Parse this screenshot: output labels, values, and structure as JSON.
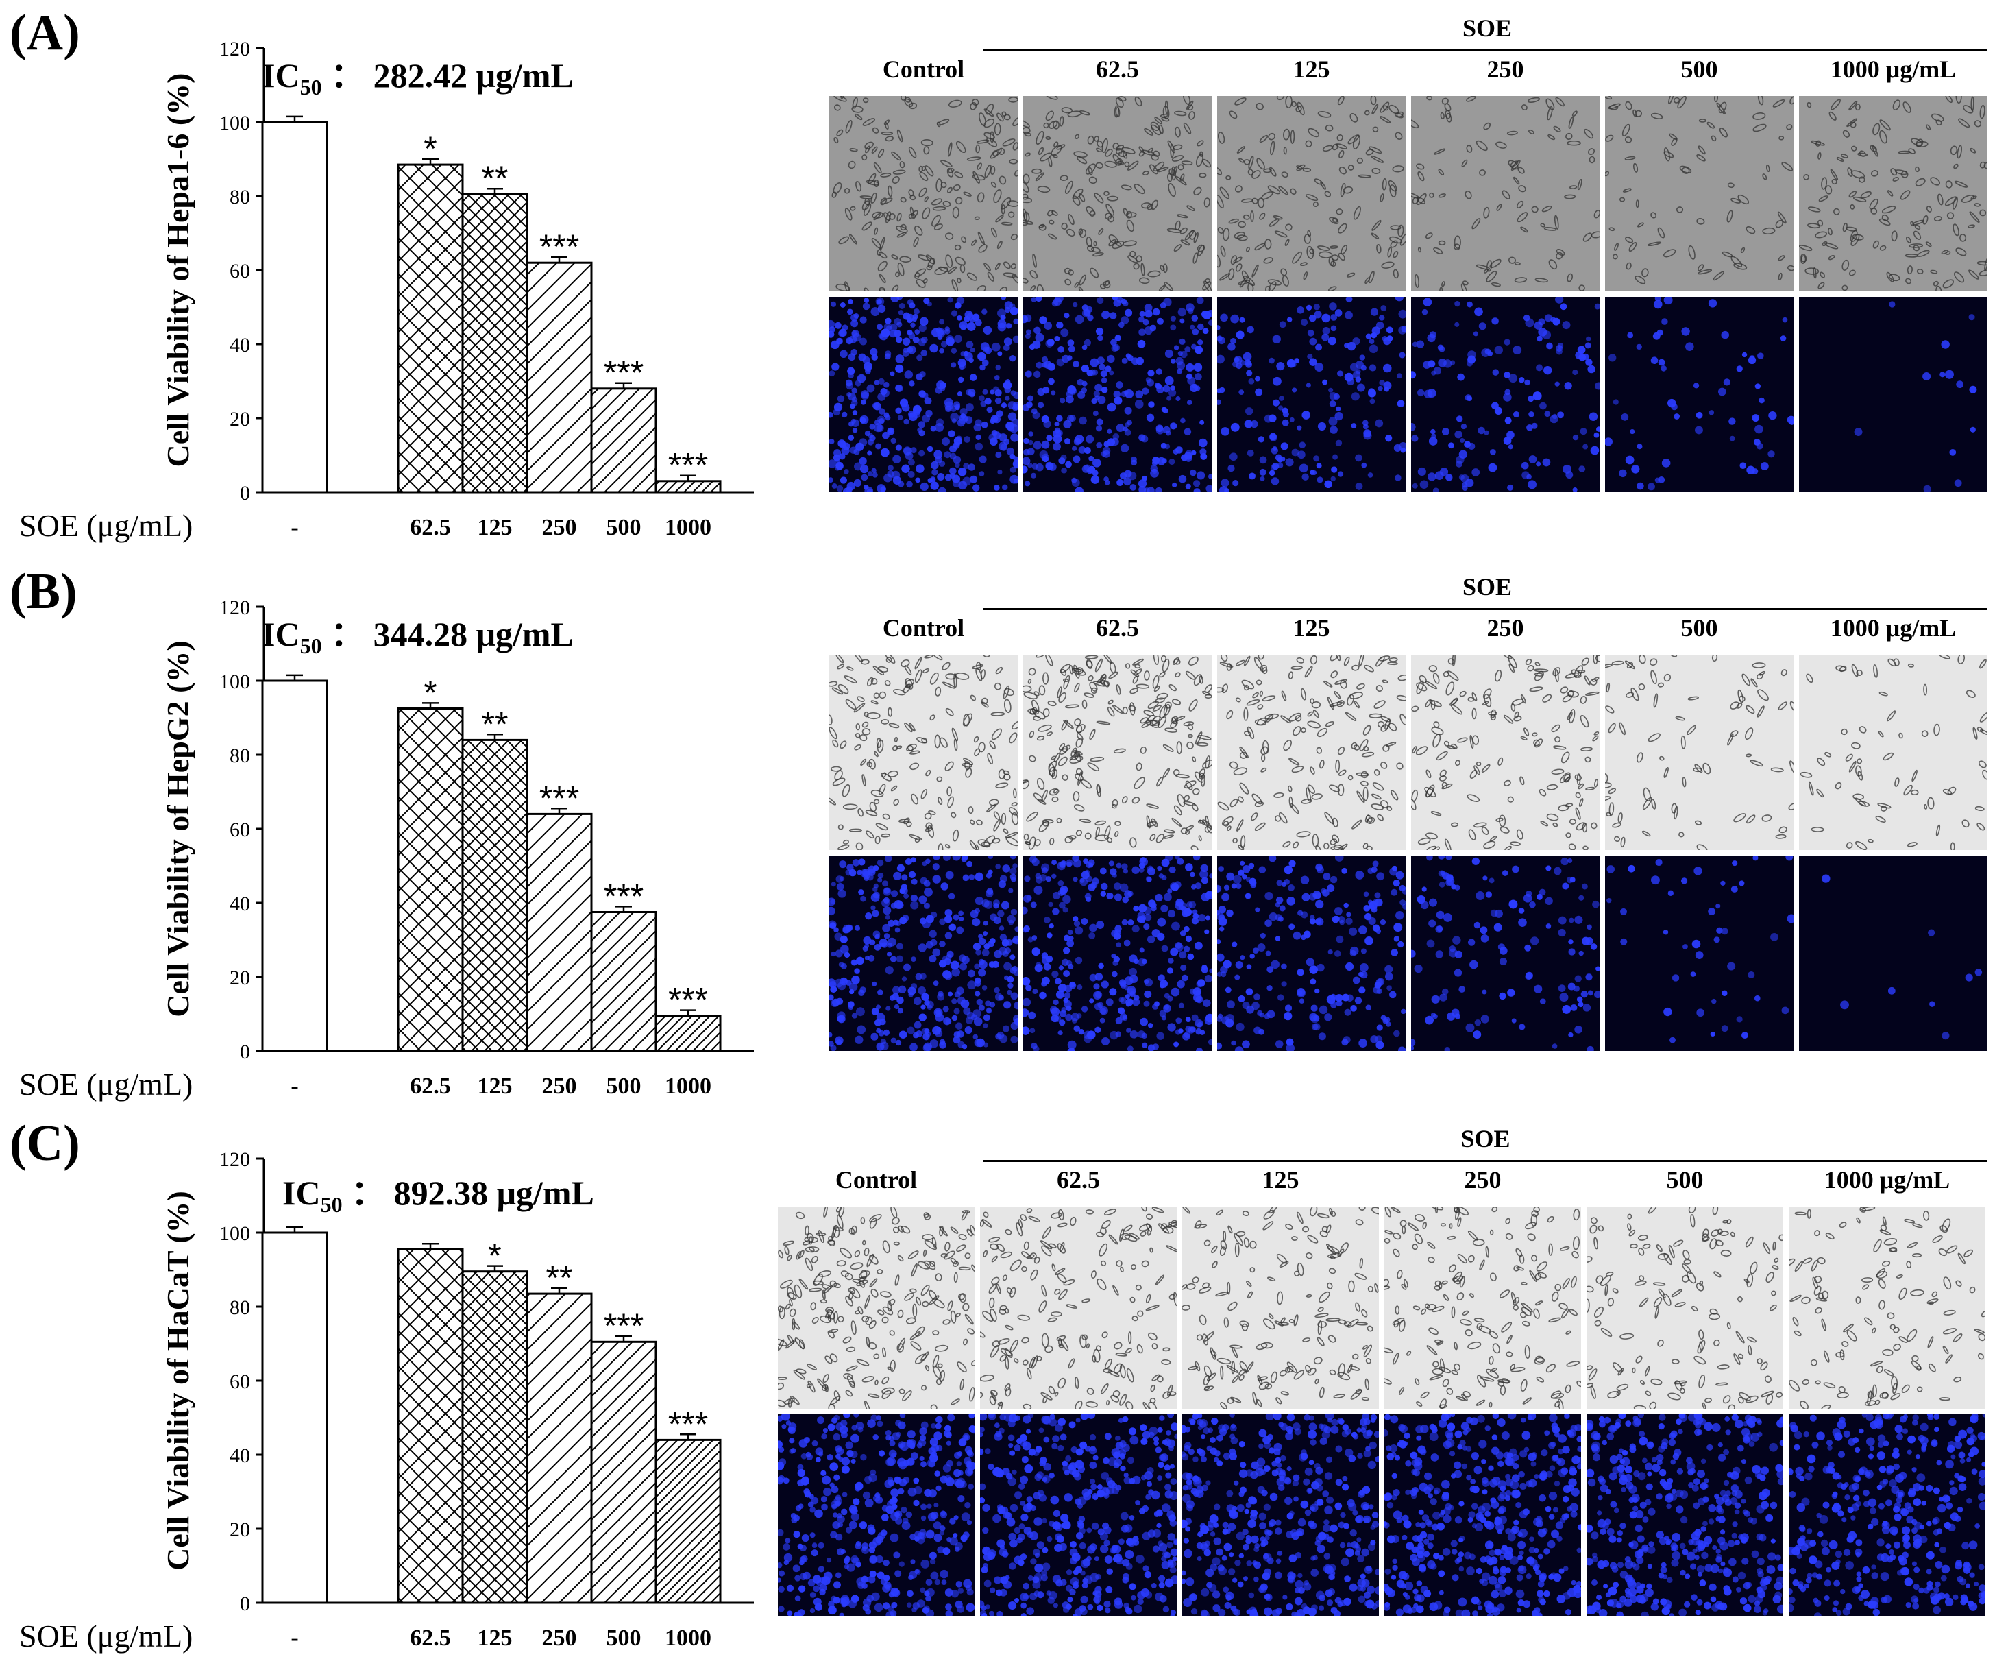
{
  "panels": [
    {
      "label": "(A)",
      "ic50": {
        "prefix": "IC",
        "sub": "50",
        "value": "： 282.42 μg/mL"
      },
      "chart_data": {
        "type": "bar",
        "ylabel": "Cell Viability of Hepa1-6 (%)",
        "xlabel": "SOE (μg/mL)",
        "categories": [
          "-",
          "62.5",
          "125",
          "250",
          "500",
          "1000"
        ],
        "values": [
          100,
          88.5,
          80.5,
          62,
          28,
          3
        ],
        "errors": [
          1.5,
          1.5,
          1.5,
          1.5,
          1.5,
          1.5
        ],
        "significance": [
          "",
          "*",
          "**",
          "***",
          "***",
          "***"
        ],
        "ylim": [
          0,
          120
        ],
        "yticks": [
          "0",
          "20",
          "40",
          "60",
          "80",
          "100",
          "120"
        ]
      },
      "micrographs": {
        "group_label": "SOE",
        "columns": [
          "Control",
          "62.5",
          "125",
          "250",
          "500",
          "1000 μg/mL"
        ],
        "brightfield_density": [
          0.75,
          0.75,
          0.6,
          0.35,
          0.3,
          0.55
        ],
        "fluorescence_density": [
          1.0,
          0.75,
          0.45,
          0.35,
          0.15,
          0.03
        ]
      }
    },
    {
      "label": "(B)",
      "ic50": {
        "prefix": "IC",
        "sub": "50",
        "value": "： 344.28 μg/mL"
      },
      "chart_data": {
        "type": "bar",
        "ylabel": "Cell Viability of HepG2 (%)",
        "xlabel": "SOE (μg/mL)",
        "categories": [
          "-",
          "62.5",
          "125",
          "250",
          "500",
          "1000"
        ],
        "values": [
          100,
          92.5,
          84,
          64,
          37.5,
          9.5
        ],
        "errors": [
          1.5,
          1.5,
          1.5,
          1.5,
          1.5,
          1.5
        ],
        "significance": [
          "",
          "*",
          "**",
          "***",
          "***",
          "***"
        ],
        "ylim": [
          0,
          120
        ],
        "yticks": [
          "0",
          "20",
          "40",
          "60",
          "80",
          "100",
          "120"
        ]
      },
      "micrographs": {
        "group_label": "SOE",
        "columns": [
          "Control",
          "62.5",
          "125",
          "250",
          "500",
          "1000 μg/mL"
        ],
        "brightfield_density": [
          0.7,
          0.9,
          0.65,
          0.6,
          0.3,
          0.25
        ],
        "fluorescence_density": [
          0.9,
          0.85,
          0.55,
          0.3,
          0.1,
          0.02
        ]
      }
    },
    {
      "label": "(C)",
      "ic50": {
        "prefix": "IC",
        "sub": "50",
        "value": "： 892.38 μg/mL"
      },
      "chart_data": {
        "type": "bar",
        "ylabel": "Cell Viability of HaCaT (%)",
        "xlabel": "SOE (μg/mL)",
        "categories": [
          "-",
          "62.5",
          "125",
          "250",
          "500",
          "1000"
        ],
        "values": [
          100,
          95.5,
          89.5,
          83.5,
          70.5,
          44
        ],
        "errors": [
          1.5,
          1.5,
          1.5,
          1.5,
          1.5,
          1.5
        ],
        "significance": [
          "",
          "",
          "*",
          "**",
          "***",
          "***"
        ],
        "ylim": [
          0,
          120
        ],
        "yticks": [
          "0",
          "20",
          "40",
          "60",
          "80",
          "100",
          "120"
        ]
      },
      "micrographs": {
        "group_label": "SOE",
        "columns": [
          "Control",
          "62.5",
          "125",
          "250",
          "500",
          "1000 μg/mL"
        ],
        "brightfield_density": [
          0.9,
          0.7,
          0.6,
          0.65,
          0.5,
          0.45
        ],
        "fluorescence_density": [
          1.0,
          1.0,
          1.0,
          1.0,
          0.95,
          0.85
        ]
      }
    }
  ],
  "colors": {
    "bar_fill": "#ffffff",
    "bar_stroke": "#000000",
    "fluor_bg": "#03031c",
    "fluor_nuclei": "#2b3cff",
    "bright_bg_dark": "#9a9a9a",
    "bright_bg_light": "#e6e6e6",
    "cells": "#333333"
  }
}
